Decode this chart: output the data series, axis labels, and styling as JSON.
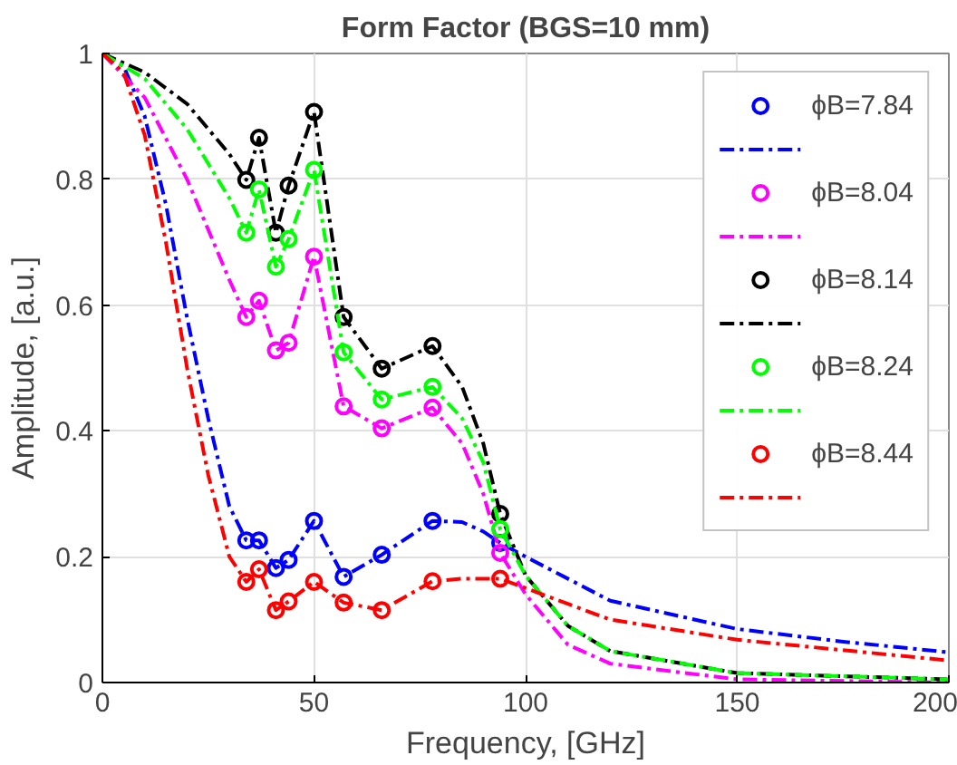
{
  "chart_data": {
    "type": "line",
    "title": "Form Factor (BGS=10 mm)",
    "xlabel": "Frequency, [GHz]",
    "ylabel": "Amplitude, [a.u.]",
    "xlim": [
      0,
      200
    ],
    "ylim": [
      0,
      1
    ],
    "xticks": [
      0,
      50,
      100,
      150,
      200
    ],
    "yticks": [
      0,
      0.2,
      0.4,
      0.6,
      0.8,
      1
    ],
    "grid": true,
    "legend": "top right",
    "series": [
      {
        "type": "scatter",
        "marker": "circle",
        "name": "ϕB=7.84",
        "color": "#0000ff",
        "x": [
          34,
          37,
          41,
          44,
          50,
          57,
          66,
          78,
          94
        ],
        "values": [
          0.226,
          0.226,
          0.182,
          0.195,
          0.257,
          0.168,
          0.203,
          0.257,
          0.222
        ]
      },
      {
        "line_style": "dashdot",
        "color": "#0000ff",
        "x": [
          0,
          5,
          10,
          15,
          20,
          25,
          30,
          34,
          37,
          41,
          44,
          50,
          57,
          66,
          78,
          85,
          90,
          94,
          100,
          120,
          150,
          175,
          200
        ],
        "values": [
          1,
          0.98,
          0.9,
          0.76,
          0.58,
          0.42,
          0.28,
          0.226,
          0.226,
          0.182,
          0.195,
          0.257,
          0.168,
          0.203,
          0.257,
          0.255,
          0.24,
          0.222,
          0.2,
          0.13,
          0.085,
          0.065,
          0.048
        ]
      },
      {
        "type": "scatter",
        "marker": "circle",
        "name": "ϕB=8.04",
        "color": "#ff00ff",
        "x": [
          34,
          37,
          41,
          44,
          50,
          57,
          66,
          78,
          94
        ],
        "values": [
          0.581,
          0.607,
          0.528,
          0.54,
          0.677,
          0.439,
          0.404,
          0.437,
          0.206
        ]
      },
      {
        "line_style": "dashdot",
        "color": "#ff00ff",
        "x": [
          0,
          10,
          20,
          30,
          34,
          37,
          41,
          44,
          50,
          57,
          66,
          78,
          85,
          90,
          94,
          100,
          110,
          120,
          150,
          200
        ],
        "values": [
          1,
          0.93,
          0.8,
          0.64,
          0.581,
          0.607,
          0.528,
          0.54,
          0.677,
          0.439,
          0.404,
          0.437,
          0.38,
          0.3,
          0.206,
          0.14,
          0.06,
          0.03,
          0.005,
          0
        ]
      },
      {
        "type": "scatter",
        "marker": "circle",
        "name": "ϕB=8.14",
        "color": "#000000",
        "x": [
          34,
          37,
          41,
          44,
          50,
          57,
          66,
          78,
          94
        ],
        "values": [
          0.799,
          0.866,
          0.715,
          0.79,
          0.907,
          0.581,
          0.499,
          0.535,
          0.268
        ]
      },
      {
        "line_style": "dashdot",
        "color": "#000000",
        "x": [
          0,
          10,
          20,
          30,
          34,
          37,
          41,
          44,
          50,
          57,
          66,
          78,
          85,
          90,
          94,
          100,
          110,
          120,
          150,
          200
        ],
        "values": [
          1,
          0.97,
          0.92,
          0.84,
          0.799,
          0.866,
          0.715,
          0.79,
          0.907,
          0.581,
          0.499,
          0.535,
          0.47,
          0.38,
          0.268,
          0.17,
          0.09,
          0.05,
          0.015,
          0.005
        ]
      },
      {
        "type": "scatter",
        "marker": "circle",
        "name": "ϕB=8.24",
        "color": "#00ff00",
        "x": [
          34,
          37,
          41,
          44,
          50,
          57,
          66,
          78,
          94
        ],
        "values": [
          0.715,
          0.784,
          0.661,
          0.705,
          0.815,
          0.525,
          0.45,
          0.47,
          0.244
        ]
      },
      {
        "line_style": "dashdot",
        "color": "#00ff00",
        "x": [
          0,
          10,
          20,
          30,
          34,
          37,
          41,
          44,
          50,
          57,
          66,
          78,
          85,
          90,
          94,
          100,
          110,
          120,
          150,
          200
        ],
        "values": [
          1,
          0.96,
          0.88,
          0.77,
          0.715,
          0.784,
          0.661,
          0.705,
          0.815,
          0.525,
          0.45,
          0.47,
          0.42,
          0.35,
          0.244,
          0.17,
          0.09,
          0.05,
          0.015,
          0.005
        ]
      },
      {
        "type": "scatter",
        "marker": "circle",
        "name": "ϕB=8.44",
        "color": "#ff0000",
        "x": [
          34,
          37,
          41,
          44,
          50,
          57,
          66,
          78,
          94
        ],
        "values": [
          0.16,
          0.18,
          0.115,
          0.129,
          0.16,
          0.127,
          0.115,
          0.161,
          0.165
        ]
      },
      {
        "line_style": "dashdot",
        "color": "#ff0000",
        "x": [
          0,
          5,
          10,
          15,
          20,
          25,
          30,
          34,
          37,
          41,
          44,
          50,
          57,
          66,
          78,
          85,
          90,
          94,
          100,
          120,
          150,
          200
        ],
        "values": [
          1,
          0.97,
          0.87,
          0.7,
          0.5,
          0.33,
          0.2,
          0.16,
          0.18,
          0.115,
          0.129,
          0.16,
          0.127,
          0.115,
          0.161,
          0.165,
          0.165,
          0.165,
          0.15,
          0.1,
          0.068,
          0.035
        ]
      }
    ]
  }
}
